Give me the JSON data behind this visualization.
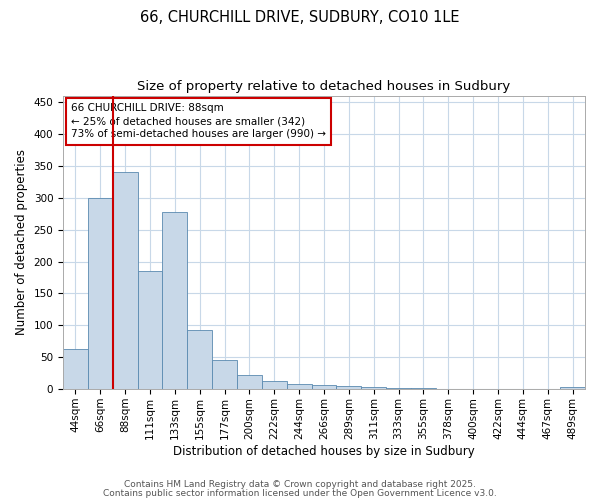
{
  "title_line1": "66, CHURCHILL DRIVE, SUDBURY, CO10 1LE",
  "title_line2": "Size of property relative to detached houses in Sudbury",
  "xlabel": "Distribution of detached houses by size in Sudbury",
  "ylabel": "Number of detached properties",
  "categories": [
    "44sqm",
    "66sqm",
    "88sqm",
    "111sqm",
    "133sqm",
    "155sqm",
    "177sqm",
    "200sqm",
    "222sqm",
    "244sqm",
    "266sqm",
    "289sqm",
    "311sqm",
    "333sqm",
    "355sqm",
    "378sqm",
    "400sqm",
    "422sqm",
    "444sqm",
    "467sqm",
    "489sqm"
  ],
  "values": [
    63,
    300,
    340,
    185,
    278,
    93,
    45,
    22,
    13,
    8,
    6,
    5,
    4,
    2,
    2,
    1,
    1,
    0,
    1,
    0,
    3
  ],
  "bar_color": "#c8d8e8",
  "bar_edge_color": "#5a8ab0",
  "highlight_index": 2,
  "highlight_line_color": "#cc0000",
  "ylim": [
    0,
    460
  ],
  "yticks": [
    0,
    50,
    100,
    150,
    200,
    250,
    300,
    350,
    400,
    450
  ],
  "annotation_text": "66 CHURCHILL DRIVE: 88sqm\n← 25% of detached houses are smaller (342)\n73% of semi-detached houses are larger (990) →",
  "annotation_box_color": "#cc0000",
  "footer_line1": "Contains HM Land Registry data © Crown copyright and database right 2025.",
  "footer_line2": "Contains public sector information licensed under the Open Government Licence v3.0.",
  "bg_color": "#ffffff",
  "grid_color": "#c8d8e8",
  "title_fontsize": 10.5,
  "subtitle_fontsize": 9.5,
  "axis_label_fontsize": 8.5,
  "tick_fontsize": 7.5,
  "annotation_fontsize": 7.5,
  "footer_fontsize": 6.5
}
